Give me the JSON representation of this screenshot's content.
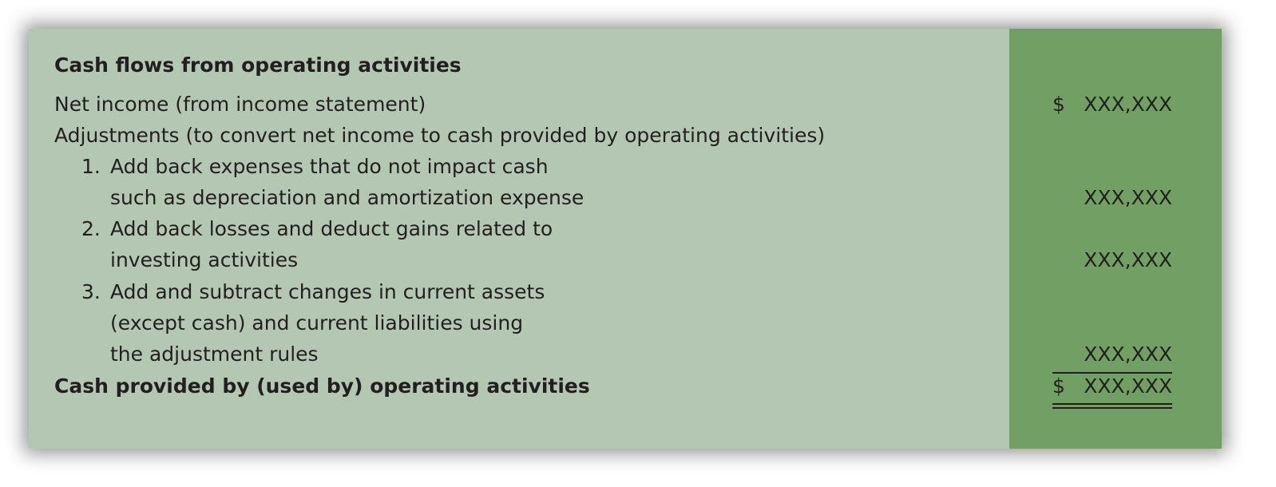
{
  "statement": {
    "heading": "Cash flows from operating activities",
    "net_income_label": "Net income (from income statement)",
    "net_income_amount": "XXX,XXX",
    "currency_symbol": "$",
    "adjustments_label": "Adjustments (to convert net income to cash provided by operating activities)",
    "items": [
      {
        "number": "1.",
        "line1": "Add back expenses that do not impact cash",
        "line2": "such as depreciation and amortization expense",
        "amount": "XXX,XXX"
      },
      {
        "number": "2.",
        "line1": "Add back losses and deduct gains related to",
        "line2": "investing activities",
        "amount": "XXX,XXX"
      },
      {
        "number": "3.",
        "line1": "Add and subtract changes in current assets",
        "line2": "(except cash) and current liabilities using",
        "line3": "the adjustment rules",
        "amount": "XXX,XXX"
      }
    ],
    "total_label": "Cash provided by (used by) operating activities",
    "total_amount": "XXX,XXX",
    "colors": {
      "label_background": "#b4c7b2",
      "amount_background": "#72a064",
      "text": "#231f20"
    }
  }
}
